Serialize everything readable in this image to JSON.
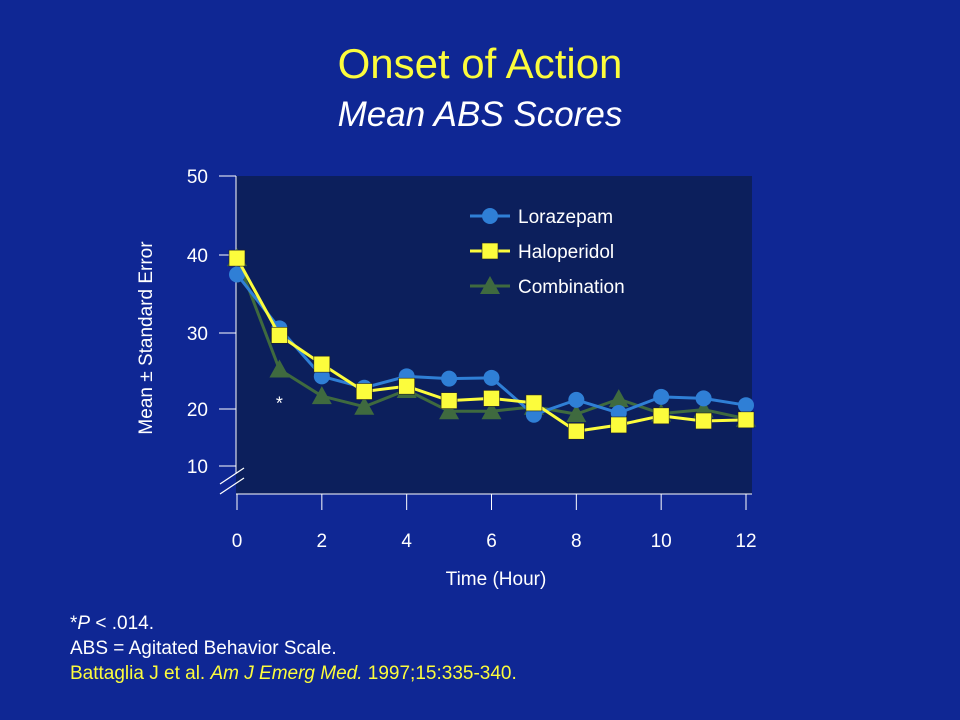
{
  "slide": {
    "title": "Onset of Action",
    "subtitle": "Mean ABS Scores"
  },
  "footnotes": {
    "sig_star": "*",
    "sig_p": "P",
    "sig_rest": " < .014.",
    "abbrev": "ABS = Agitated Behavior Scale.",
    "citation_authors": "Battaglia J et al. ",
    "citation_journal": "Am J Emerg Med.",
    "citation_details": " 1997;15:335-340."
  },
  "colors": {
    "background": "#0f2794",
    "plot_area": "#0c1f5c",
    "title": "#fcfc3c",
    "text": "#ffffff",
    "lorazepam": "#2f7fd6",
    "haloperidol": "#fcfc3c",
    "combination": "#3f6a3f"
  },
  "chart_data": {
    "type": "line",
    "xlabel": "Time (Hour)",
    "ylabel": "Mean ± Standard Error",
    "xlim": [
      0,
      12
    ],
    "ylim": [
      10,
      50
    ],
    "x_ticks": [
      0,
      2,
      4,
      6,
      8,
      10,
      12
    ],
    "y_ticks": [
      10,
      20,
      30,
      40,
      50
    ],
    "axis_break": true,
    "legend_position": "top-right",
    "annotations": [
      {
        "text": "*",
        "x": 1,
        "y": 21
      }
    ],
    "series": [
      {
        "name": "Lorazepam",
        "marker": "circle",
        "x": [
          0,
          1,
          2,
          3,
          4,
          5,
          6,
          7,
          8,
          9,
          10,
          11,
          12
        ],
        "y": [
          37.5,
          30.6,
          24.3,
          22.8,
          24.3,
          24.0,
          24.1,
          19.0,
          21.2,
          19.3,
          21.6,
          21.4,
          20.5
        ]
      },
      {
        "name": "Haloperidol",
        "marker": "square",
        "x": [
          0,
          1,
          2,
          3,
          4,
          5,
          6,
          7,
          8,
          9,
          10,
          11,
          12
        ],
        "y": [
          39.6,
          29.7,
          25.9,
          22.3,
          23.0,
          21.1,
          21.4,
          20.8,
          16.1,
          17.2,
          18.8,
          17.9,
          18.1
        ]
      },
      {
        "name": "Combination",
        "marker": "triangle",
        "x": [
          0,
          1,
          2,
          3,
          4,
          5,
          6,
          7,
          8,
          9,
          10,
          11,
          12
        ],
        "y": [
          39.6,
          25.2,
          21.7,
          20.3,
          22.5,
          19.6,
          19.6,
          20.3,
          19.1,
          21.3,
          19.2,
          19.9,
          18.3
        ]
      }
    ]
  }
}
